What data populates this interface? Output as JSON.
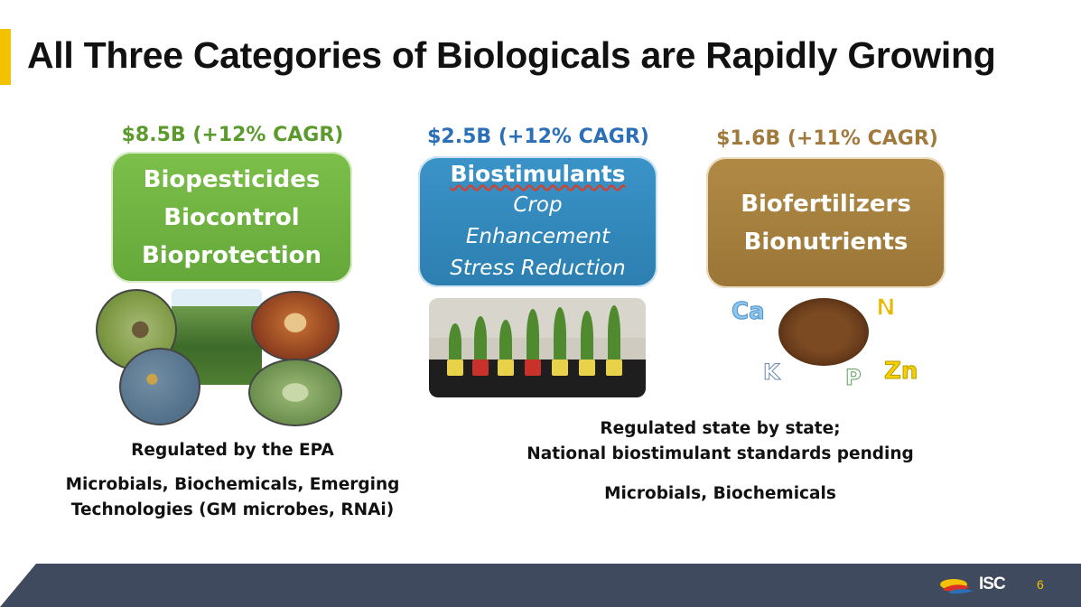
{
  "slide": {
    "title": "All Three Categories of Biologicals are Rapidly Growing",
    "page_number": "6",
    "accent_color": "#f2c200",
    "footer_color": "#3f4a5e"
  },
  "categories": [
    {
      "market": "$8.5B (+12% CAGR)",
      "lines": [
        "Biopesticides",
        "Biocontrol",
        "Bioprotection"
      ],
      "color": "#6aad3e"
    },
    {
      "market": "$2.5B (+12% CAGR)",
      "heading": "Biostimulants",
      "sublines": [
        "Crop",
        "Enhancement",
        "Stress Reduction"
      ],
      "color": "#2f86b9"
    },
    {
      "market": "$1.6B (+11% CAGR)",
      "lines": [
        "Biofertilizers",
        "Bionutrients"
      ],
      "color": "#a47f3c"
    }
  ],
  "nutrients": [
    "Ca",
    "N",
    "K",
    "P",
    "Zn"
  ],
  "notes": {
    "epa_regulation": "Regulated by the EPA",
    "epa_types": [
      "Microbials, Biochemicals, Emerging",
      "Technologies (GM microbes, RNAi)"
    ],
    "state_regulation": [
      "Regulated state by state;",
      "National biostimulant standards pending"
    ],
    "state_types": "Microbials, Biochemicals"
  },
  "logo": {
    "text": "ISC"
  }
}
